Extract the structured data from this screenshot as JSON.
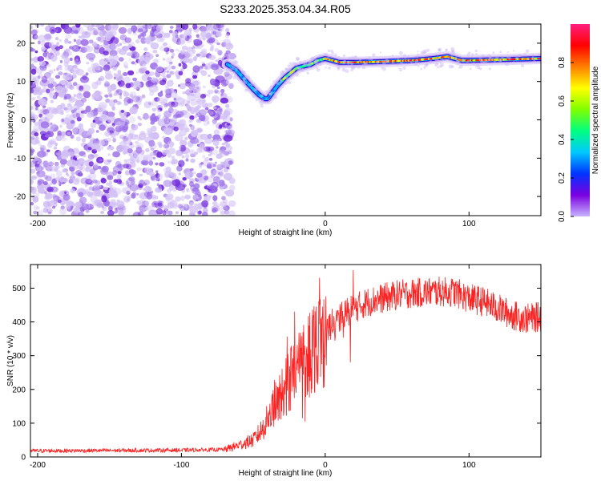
{
  "title": "S233.2025.353.04.34.R05",
  "chart_data": [
    {
      "type": "heatmap",
      "name": "spectrogram",
      "title": "S233.2025.353.04.34.R05",
      "xlabel": "Height of straight line (km)",
      "ylabel": "Frequency (Hz)",
      "xlim": [
        -205,
        150
      ],
      "ylim": [
        -25,
        25
      ],
      "xticks": [
        -200,
        -100,
        0,
        100
      ],
      "xtick_labels": [
        "-200",
        "-100",
        "0",
        "100"
      ],
      "yticks": [
        -20,
        -10,
        0,
        10,
        20
      ],
      "ytick_labels": [
        "-20",
        "-10",
        "0",
        "10",
        "20"
      ],
      "noise_region_x": [
        -205,
        -68
      ],
      "ridge_line": {
        "x": [
          -68,
          -62,
          -55,
          -50,
          -46,
          -42,
          -40,
          -36,
          -33,
          -28,
          -20,
          -10,
          -5,
          0,
          5,
          10,
          20,
          40,
          60,
          75,
          85,
          90,
          95,
          100,
          120,
          150
        ],
        "y": [
          14.5,
          13,
          10,
          8,
          6.5,
          5.5,
          5.5,
          7.5,
          9,
          11,
          13.5,
          14.5,
          15.5,
          16,
          15.5,
          15,
          15,
          15.2,
          15.5,
          16,
          16.5,
          16,
          15.5,
          15.5,
          15.7,
          16
        ]
      },
      "colorbar": {
        "label": "Normalized spectral amplitude",
        "range": [
          0,
          1
        ],
        "ticks": [
          0.0,
          0.2,
          0.4,
          0.6,
          0.8
        ],
        "tick_labels": [
          "0.0",
          "0.2",
          "0.4",
          "0.6",
          "0.8"
        ]
      }
    },
    {
      "type": "line",
      "name": "snr",
      "xlabel": "Height of straight line (km)",
      "ylabel": "SNR (10 * v/v)",
      "xlim": [
        -205,
        150
      ],
      "ylim": [
        0,
        570
      ],
      "xticks": [
        -200,
        -100,
        0,
        100
      ],
      "xtick_labels": [
        "-200",
        "-100",
        "0",
        "100"
      ],
      "yticks": [
        0,
        100,
        200,
        300,
        400,
        500
      ],
      "ytick_labels": [
        "0",
        "100",
        "200",
        "300",
        "400",
        "500"
      ],
      "series": [
        {
          "name": "SNR",
          "color": "#ff2222",
          "x": [
            -205,
            -100,
            -70,
            -60,
            -50,
            -45,
            -40,
            -35,
            -30,
            -25,
            -20,
            -15,
            -10,
            -5,
            0,
            5,
            10,
            15,
            20,
            25,
            30,
            40,
            50,
            60,
            70,
            80,
            90,
            100,
            110,
            120,
            130,
            140,
            150
          ],
          "values": [
            18,
            20,
            22,
            35,
            50,
            75,
            110,
            150,
            190,
            230,
            260,
            290,
            320,
            350,
            370,
            390,
            410,
            430,
            440,
            450,
            460,
            470,
            480,
            485,
            488,
            490,
            488,
            470,
            460,
            440,
            420,
            410,
            415
          ]
        }
      ]
    }
  ],
  "colors": {
    "colorbar_stops": [
      "#c8b4ff",
      "#7a00e0",
      "#0033ff",
      "#00c8ff",
      "#00ff80",
      "#80ff00",
      "#ffff00",
      "#ff8000",
      "#ff0000",
      "#ff2080"
    ],
    "noise_light": "#d2c0f5",
    "noise_mid": "#9b6fe8",
    "noise_dark": "#6a1fd8",
    "snr_line": "#ff2222"
  }
}
